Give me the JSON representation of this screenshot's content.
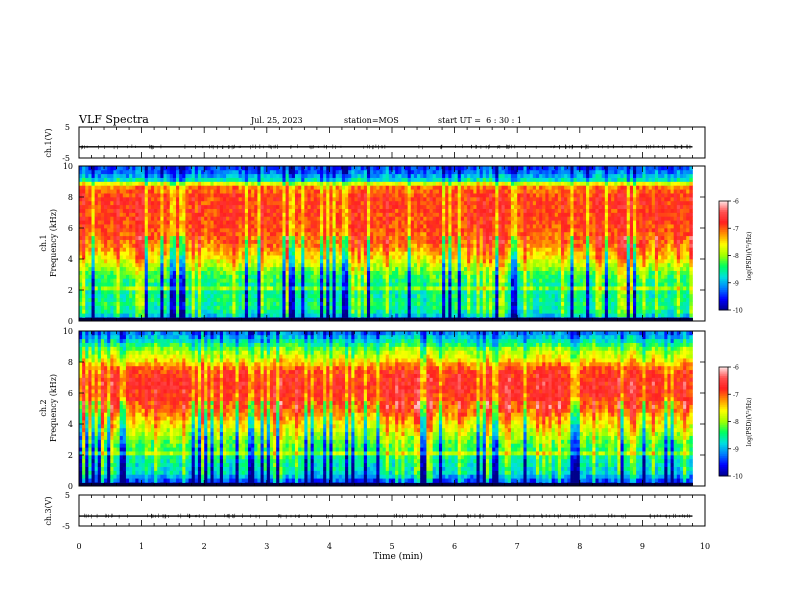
{
  "header": {
    "title": "VLF Spectra",
    "date": "Jul. 25, 2023",
    "station": "station=MOS",
    "start": "start UT =  6 : 30 : 1"
  },
  "colors": {
    "colormap": [
      "#00008b",
      "#0000ff",
      "#0080ff",
      "#00e0e0",
      "#00ff60",
      "#a0ff00",
      "#ffff00",
      "#ff9000",
      "#ff2020",
      "#ff5050",
      "#ffe8e8"
    ],
    "background_band_top": "#2a4bd8",
    "background_band_bottom": "#1030a0"
  },
  "chart_data": [
    {
      "type": "line",
      "panel": "ch1-waveform",
      "ylabel": "ch.1(V)",
      "ylim": [
        -5,
        5
      ],
      "yticks": [
        "5",
        "-5"
      ],
      "xlim": [
        0,
        10
      ],
      "series": [
        {
          "values": [
            [
              0,
              -1.4
            ],
            [
              9.8,
              -1.4
            ]
          ]
        }
      ]
    },
    {
      "type": "heatmap",
      "panel": "ch1-spectrogram",
      "ylabel_top": "ch.1",
      "ylabel": "Frequency (kHz)",
      "ylim": [
        0,
        10
      ],
      "yticks": [
        "0",
        "2",
        "4",
        "6",
        "8",
        "10"
      ],
      "xlim": [
        0,
        10
      ],
      "data_end_min": 9.8,
      "colorbar": {
        "label": "log(PSD)(V²/Hz)",
        "range": [
          -10,
          -6
        ],
        "ticks": [
          "-6",
          "-7",
          "-8",
          "-9",
          "-10"
        ]
      },
      "profile_khz": [
        [
          0.0,
          -10
        ],
        [
          0.25,
          -10
        ],
        [
          0.4,
          -8.7
        ],
        [
          1.0,
          -8.5
        ],
        [
          2.0,
          -8.6
        ],
        [
          3.0,
          -8.3
        ],
        [
          4.2,
          -7.5
        ],
        [
          5.0,
          -7.1
        ],
        [
          6.5,
          -6.9
        ],
        [
          8.0,
          -6.9
        ],
        [
          8.8,
          -7.2
        ],
        [
          9.0,
          -8.6
        ],
        [
          9.5,
          -9.2
        ],
        [
          10.0,
          -9.5
        ]
      ],
      "bright_line_khz": 2.2
    },
    {
      "type": "heatmap",
      "panel": "ch2-spectrogram",
      "ylabel_top": "ch.2",
      "ylabel": "Frequency (kHz)",
      "ylim": [
        0,
        10
      ],
      "yticks": [
        "0",
        "2",
        "4",
        "6",
        "8",
        "10"
      ],
      "xlim": [
        0,
        10
      ],
      "data_end_min": 9.8,
      "colorbar": {
        "label": "log(PSD)(V²/Hz)",
        "range": [
          -10,
          -6
        ],
        "ticks": [
          "-6",
          "-7",
          "-8",
          "-9",
          "-10"
        ]
      },
      "profile_khz": [
        [
          0.0,
          -10
        ],
        [
          0.2,
          -9.6
        ],
        [
          0.8,
          -8.8
        ],
        [
          2.0,
          -8.5
        ],
        [
          3.0,
          -8.1
        ],
        [
          4.0,
          -7.6
        ],
        [
          5.0,
          -7.0
        ],
        [
          6.5,
          -6.7
        ],
        [
          7.5,
          -6.9
        ],
        [
          8.2,
          -7.6
        ],
        [
          8.8,
          -8.0
        ],
        [
          9.3,
          -8.6
        ],
        [
          10.0,
          -9.3
        ]
      ],
      "bright_line_khz": 2.2
    },
    {
      "type": "line",
      "panel": "ch3-waveform",
      "ylabel": "ch.3(V)",
      "ylim": [
        -5,
        5
      ],
      "yticks": [
        "5",
        "-5"
      ],
      "xlim": [
        0,
        10
      ],
      "xlabel": "Time (min)",
      "xticks": [
        "0",
        "1",
        "2",
        "3",
        "4",
        "5",
        "6",
        "7",
        "8",
        "9",
        "10"
      ],
      "series": [
        {
          "values": [
            [
              0,
              -1.8
            ],
            [
              9.8,
              -1.8
            ]
          ]
        }
      ]
    }
  ]
}
